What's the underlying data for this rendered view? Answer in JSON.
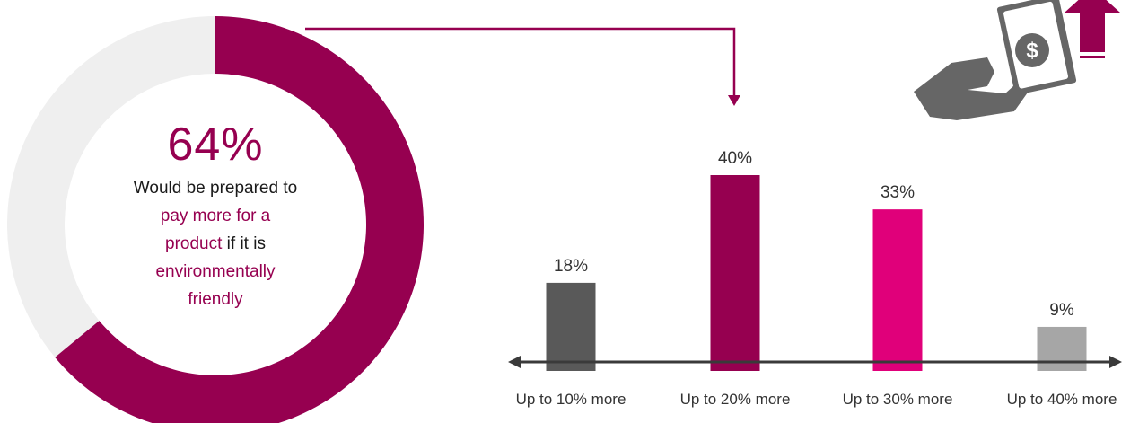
{
  "colors": {
    "donut_fill": "#960050",
    "donut_track": "#efefef",
    "connector": "#960050",
    "axis": "#3a3a3a",
    "icon_gray": "#666666"
  },
  "donut": {
    "value_label": "64%",
    "lines": [
      [
        {
          "text": "Would be prepared to",
          "hl": false
        }
      ],
      [
        {
          "text": "pay more for a",
          "hl": true
        }
      ],
      [
        {
          "text": "product",
          "hl": true
        },
        {
          "text": " if it is",
          "hl": false
        }
      ],
      [
        {
          "text": "environmentally",
          "hl": true
        }
      ],
      [
        {
          "text": "friendly",
          "hl": true
        }
      ]
    ]
  },
  "icon": {
    "name": "hand-holding-money-arrow-up-icon"
  },
  "chart_data": [
    {
      "type": "pie",
      "variant": "donut",
      "slices": [
        {
          "label": "Would be prepared to pay more for a product if it is environmentally friendly",
          "value": 64,
          "color": "#960050"
        },
        {
          "label": "",
          "value": 36,
          "color": "#efefef"
        }
      ],
      "center_label": "64%"
    },
    {
      "type": "bar",
      "categories": [
        "Up to 10% more",
        "Up to 20% more",
        "Up to 30% more",
        "Up to 40% more"
      ],
      "values": [
        18,
        40,
        33,
        9
      ],
      "value_labels": [
        "18%",
        "40%",
        "33%",
        "9%"
      ],
      "colors": [
        "#595959",
        "#960050",
        "#e0007a",
        "#a6a6a6"
      ],
      "ylim": [
        0,
        40
      ],
      "grid": false,
      "legend": "none"
    }
  ]
}
